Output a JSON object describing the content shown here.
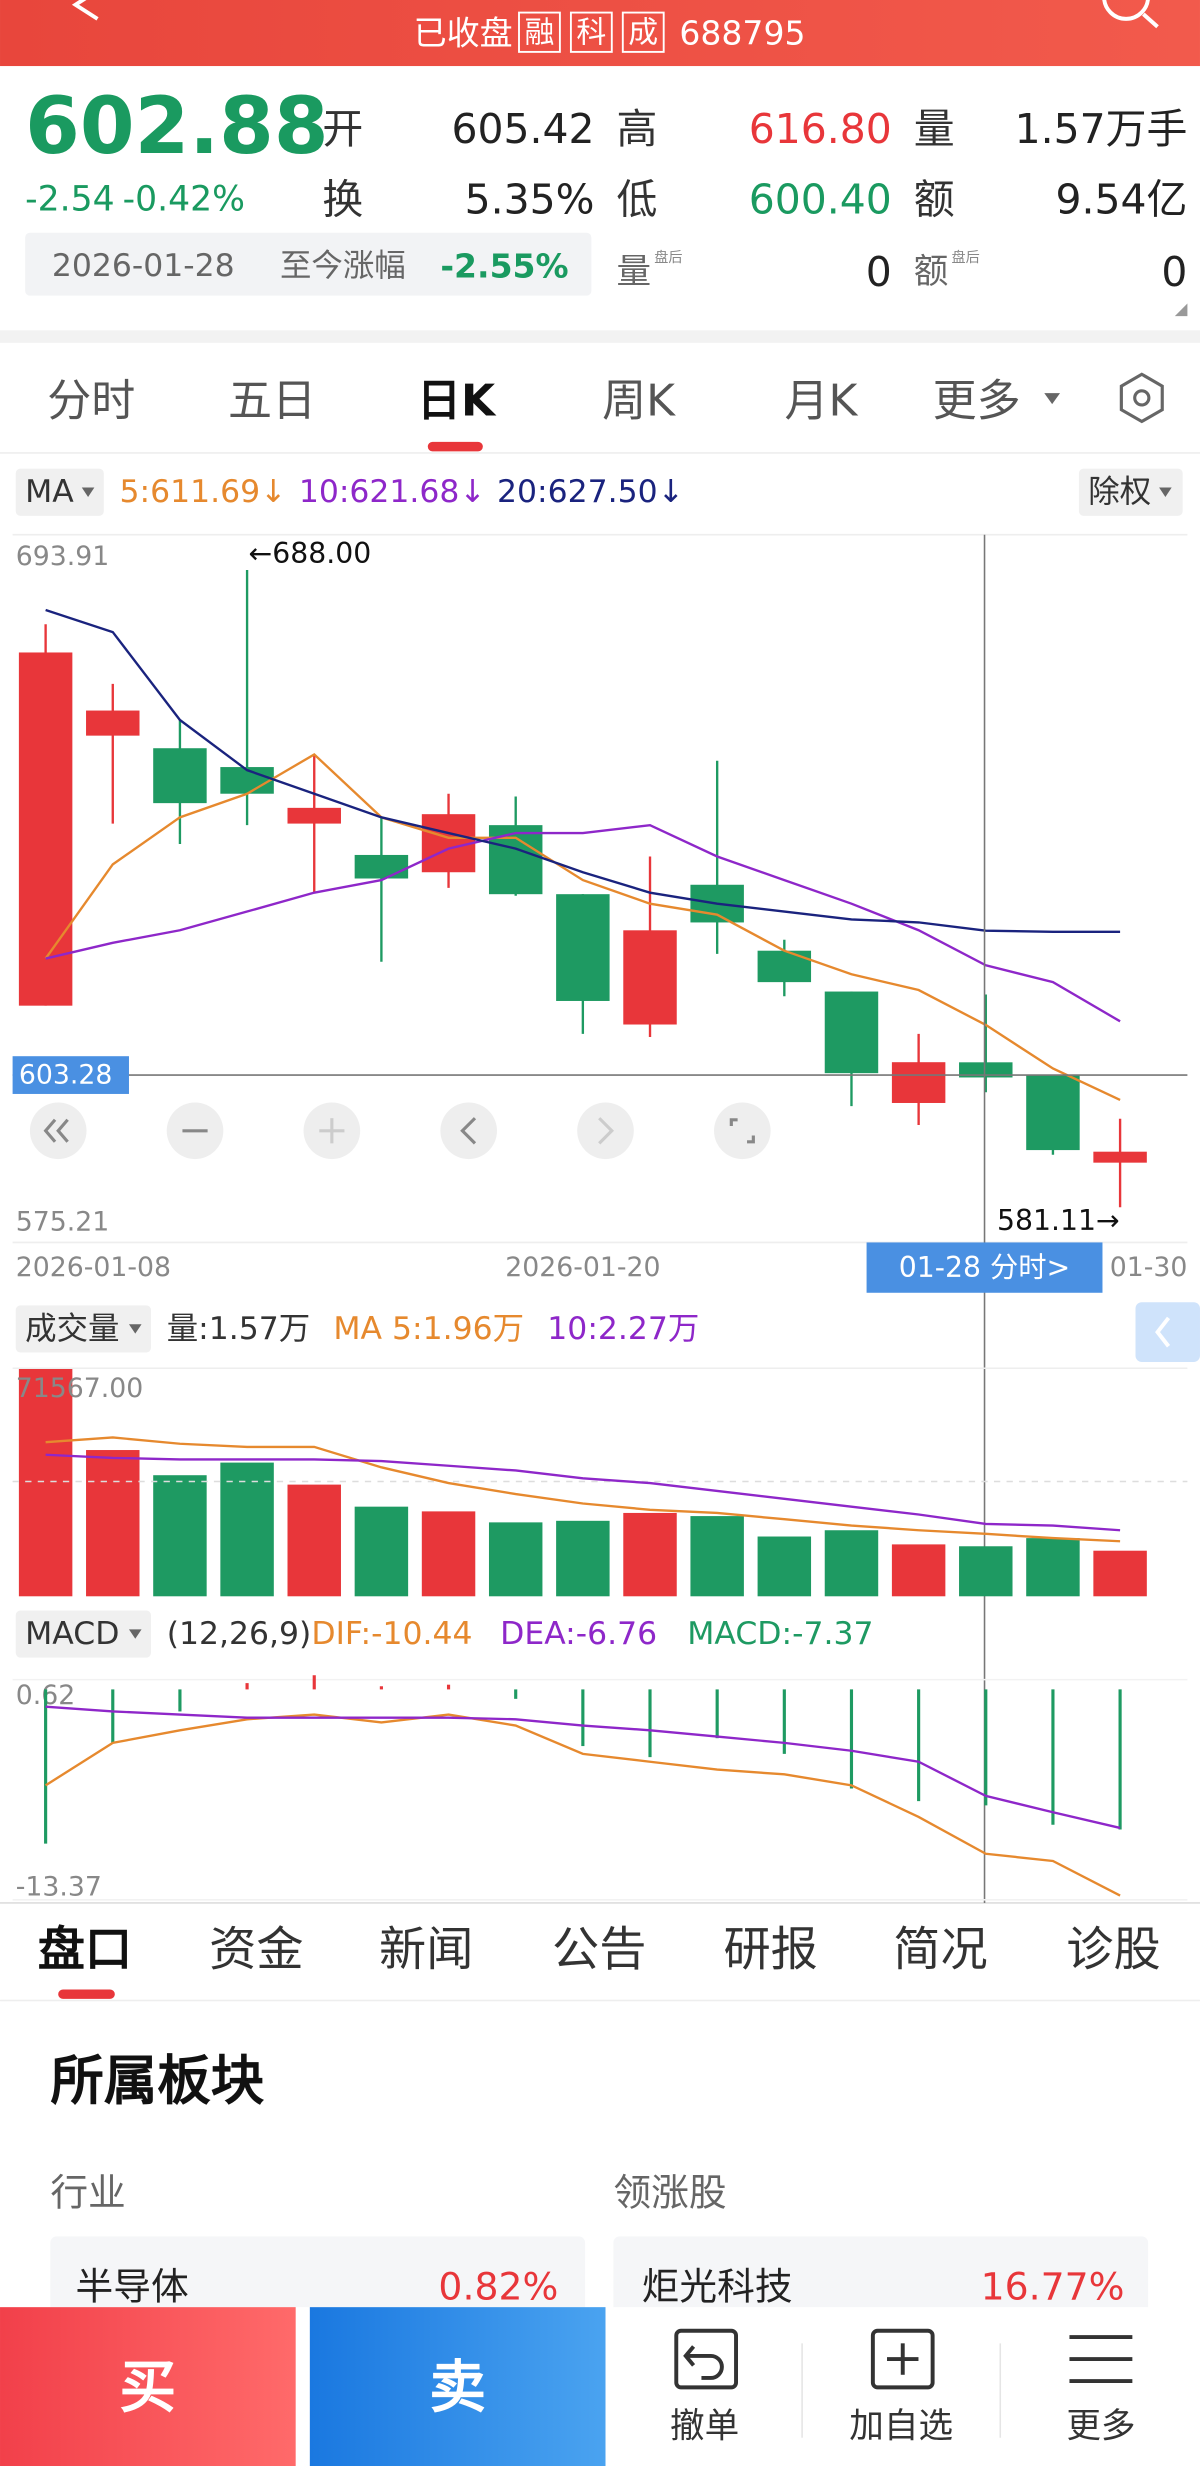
{
  "status_bar": {
    "state": "已收盘",
    "badges": [
      "融",
      "科",
      "成"
    ],
    "code": "688795"
  },
  "quote": {
    "price": "602.88",
    "change": "-2.54",
    "change_pct": "-0.42%",
    "date": "2026-01-28",
    "since_label": "至今涨幅",
    "since_value": "-2.55%",
    "fields": [
      {
        "label": "开",
        "value": "605.42"
      },
      {
        "label": "高",
        "value": "616.80"
      },
      {
        "label": "量",
        "value": "1.57万手"
      },
      {
        "label": "换",
        "value": "5.35%"
      },
      {
        "label": "低",
        "value": "600.40"
      },
      {
        "label": "额",
        "value": "9.54亿"
      },
      {
        "label": "量",
        "sup": "盘后",
        "value": "0"
      },
      {
        "label": "额",
        "sup": "盘后",
        "value": "0"
      }
    ]
  },
  "period_tabs": [
    "分时",
    "五日",
    "日K",
    "周K",
    "月K",
    "更多"
  ],
  "kline": {
    "indicator": "MA",
    "adjust": "除权",
    "ylim": [
      575.21,
      693.91
    ],
    "yticks": [
      575.21,
      693.91
    ],
    "crosshair_price": 603.28,
    "crosshair_date": "01-28 分时>",
    "high_label": "←688.00",
    "low_label": "581.11→",
    "categories": [
      "2026-01-08",
      null,
      null,
      null,
      null,
      null,
      null,
      null,
      "2026-01-20",
      null,
      null,
      null,
      null,
      null,
      null,
      null,
      "01-30"
    ],
    "up_color": "#e8363a",
    "down_color": "#1e9a62",
    "candles": [
      [
        614.92,
        674.16,
        678.9,
        614.92
      ],
      [
        660.21,
        664.42,
        668.9,
        645.46
      ],
      [
        658.1,
        648.89,
        662.84,
        642.04
      ],
      [
        654.94,
        650.47,
        688.0,
        645.2
      ],
      [
        645.46,
        648.1,
        657.05,
        633.88
      ],
      [
        640.2,
        636.25,
        646.52,
        622.29
      ],
      [
        637.3,
        647.04,
        650.47,
        634.67
      ],
      [
        645.2,
        633.62,
        650.0,
        633.35
      ],
      [
        633.62,
        615.71,
        633.62,
        610.18
      ],
      [
        611.76,
        627.56,
        639.93,
        609.66
      ],
      [
        635.2,
        628.88,
        656.0,
        623.61
      ],
      [
        624.14,
        618.87,
        625.98,
        616.5
      ],
      [
        617.29,
        603.6,
        617.29,
        598.07
      ],
      [
        598.6,
        605.44,
        610.18,
        594.91
      ],
      [
        605.42,
        602.88,
        616.8,
        600.4
      ],
      [
        603.34,
        590.7,
        603.34,
        589.91
      ],
      [
        588.59,
        590.43,
        595.96,
        581.11
      ]
    ],
    "ma": [
      {
        "name": "5:611.69↓",
        "color": "#e6892e",
        "values": [
          622.82,
          638.62,
          646.52,
          650.47,
          657.05,
          646.52,
          643.09,
          643.09,
          635.98,
          632.04,
          630.19,
          624.14,
          620.19,
          617.55,
          611.69,
          604.39,
          599.12
        ]
      },
      {
        "name": "10:621.68↓",
        "color": "#8e27c9",
        "values": [
          622.82,
          625.45,
          627.56,
          630.72,
          633.88,
          635.98,
          641.25,
          643.88,
          643.88,
          645.2,
          639.93,
          635.98,
          632.04,
          627.56,
          621.68,
          618.87,
          612.29
        ]
      },
      {
        "name": "20:627.50↓",
        "color": "#1a237e",
        "values": [
          681.27,
          677.59,
          662.84,
          654.42,
          650.47,
          646.52,
          643.88,
          641.25,
          637.3,
          633.88,
          632.04,
          630.72,
          629.4,
          628.88,
          627.5,
          627.3,
          627.3
        ]
      }
    ]
  },
  "volume": {
    "indicator": "成交量",
    "current": "量:1.57万",
    "ylim": [
      0,
      71567
    ],
    "yticks": [
      {
        "value": 71567,
        "label": "71567.00"
      }
    ],
    "values": [
      71567,
      45900,
      38000,
      41960,
      35050,
      28130,
      26650,
      23200,
      23690,
      26160,
      25170,
      18760,
      20730,
      16290,
      15700,
      18260,
      14310
    ],
    "ma": [
      {
        "name": "MA 5:1.96万",
        "color": "#e6892e",
        "values": [
          48370,
          49850,
          47880,
          46890,
          46890,
          40480,
          35540,
          32080,
          29120,
          27150,
          26160,
          24190,
          22210,
          20730,
          19600,
          18260,
          17280
        ]
      },
      {
        "name": "10:2.27万",
        "color": "#8e27c9",
        "values": [
          44420,
          43440,
          42940,
          42940,
          42940,
          42450,
          40970,
          39490,
          37020,
          35540,
          33070,
          30600,
          28140,
          25670,
          22700,
          22210,
          20730
        ]
      }
    ]
  },
  "macd": {
    "indicator": "MACD",
    "params": "(12,26,9)",
    "ylim": [
      -13.37,
      0.62
    ],
    "yticks": [
      0.62,
      -13.37
    ],
    "bars": {
      "name": "MACD:-7.37",
      "color": "#1e9a62",
      "up_color": "#e8363a",
      "values": [
        -9.8,
        -3.4,
        -1.4,
        0.4,
        0.9,
        0.2,
        0.3,
        -0.6,
        -3.6,
        -4.3,
        -3.1,
        -4.1,
        -6.3,
        -7.1,
        -7.37,
        -8.6,
        -8.9
      ]
    },
    "lines": [
      {
        "name": "DIF:-10.44",
        "color": "#e6892e",
        "values": [
          -6.1,
          -3.4,
          -2.6,
          -1.9,
          -1.6,
          -2.1,
          -1.6,
          -2.3,
          -4.1,
          -4.6,
          -5.1,
          -5.4,
          -6.1,
          -8.1,
          -10.44,
          -10.9,
          -13.1
        ]
      },
      {
        "name": "DEA:-6.76",
        "color": "#8e27c9",
        "values": [
          -1.1,
          -1.4,
          -1.6,
          -1.8,
          -1.8,
          -1.8,
          -1.8,
          -1.9,
          -2.3,
          -2.6,
          -3.0,
          -3.4,
          -3.9,
          -4.6,
          -6.76,
          -7.8,
          -8.8
        ]
      }
    ]
  },
  "info_tabs": [
    "盘口",
    "资金",
    "新闻",
    "公告",
    "研报",
    "简况",
    "诊股"
  ],
  "sector": {
    "title": "所属板块",
    "industry_label": "行业",
    "leader_label": "领涨股",
    "industry": {
      "name": "半导体",
      "change": "0.82%"
    },
    "leader": {
      "name": "炬光科技",
      "change": "16.77%"
    }
  },
  "actions": {
    "buy": "买",
    "sell": "卖",
    "buttons": [
      "撤单",
      "加自选",
      "更多"
    ]
  }
}
